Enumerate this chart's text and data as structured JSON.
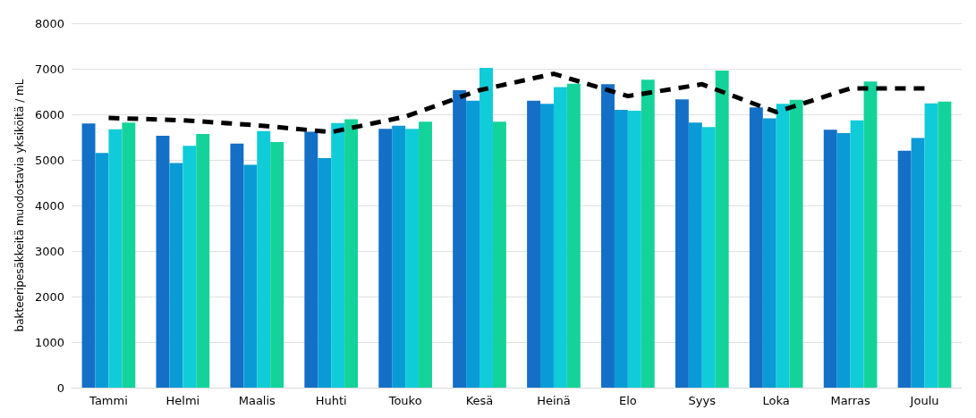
{
  "chart_data": {
    "type": "bar",
    "ylabel": "bakteeripesäkkeitä muodostavia yksiköitä / mL",
    "categories": [
      "Tammi",
      "Helmi",
      "Maalis",
      "Huhti",
      "Touko",
      "Kesä",
      "Heinä",
      "Elo",
      "Syys",
      "Loka",
      "Marras",
      "Joulu"
    ],
    "series": [
      {
        "color": "#146fc6",
        "values": [
          5800,
          5530,
          5360,
          5620,
          5680,
          6530,
          6300,
          6660,
          6330,
          6150,
          5660,
          5200
        ]
      },
      {
        "color": "#0a9bd6",
        "values": [
          5150,
          4930,
          4890,
          5040,
          5750,
          6300,
          6230,
          6100,
          5820,
          5910,
          5590,
          5480
        ]
      },
      {
        "color": "#10ccd8",
        "values": [
          5670,
          5310,
          5630,
          5810,
          5680,
          7020,
          6600,
          6080,
          5720,
          6230,
          5870,
          6240
        ]
      },
      {
        "color": "#14d39a",
        "values": [
          5820,
          5570,
          5390,
          5890,
          5840,
          5840,
          6670,
          6760,
          6960,
          6320,
          6720,
          6280
        ]
      },
      {
        "type": "line",
        "color": "#000000",
        "line_style": "dashed",
        "marker": "none",
        "values": [
          5920,
          5870,
          5760,
          5610,
          5950,
          6530,
          6890,
          6400,
          6660,
          6050,
          6570,
          6570
        ]
      }
    ],
    "ylim": [
      0,
      8000
    ],
    "yticks": [
      0,
      1000,
      2000,
      3000,
      4000,
      5000,
      6000,
      7000,
      8000
    ],
    "grid": "y"
  }
}
